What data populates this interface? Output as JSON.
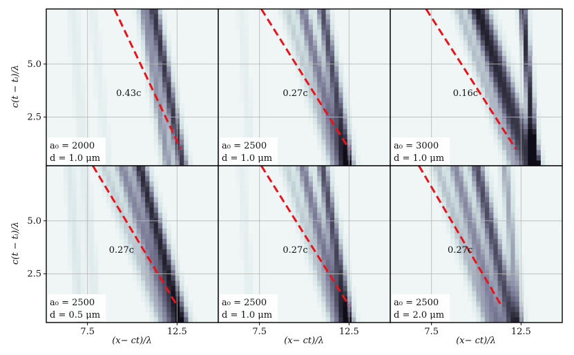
{
  "figure": {
    "xlabel": "(x− ct)/λ",
    "ylabel": "c(t − tᵢ)/λ"
  },
  "chart_data": {
    "type": "heatmap",
    "layout": "2 rows x 3 columns",
    "xlabel": "(x− ct)/λ",
    "ylabel": "c(t − tᵢ)/λ",
    "xlim": [
      5.2,
      14.8
    ],
    "ylim": [
      0.2,
      7.6
    ],
    "xticks": [
      7.5,
      12.5
    ],
    "xtick_labels": [
      "7.5",
      "12.5"
    ],
    "yticks": [
      2.5,
      5.0
    ],
    "ytick_labels": [
      "2.5",
      "5.0"
    ],
    "grid": true,
    "colormap": "bone_r",
    "line_color": "#e8141b",
    "panels": [
      {
        "a0_label": "a₀ = 2000",
        "d_label": "d = 1.0 μm",
        "speed_label": "0.43c",
        "line": {
          "x": [
            9.0,
            12.7
          ],
          "y": [
            7.6,
            1.0
          ]
        },
        "label_pos": {
          "x": 9.1,
          "y": 3.5
        },
        "features": [
          {
            "x0": 11.2,
            "x1": 12.8,
            "w": 0.35,
            "s": 0.85
          },
          {
            "x0": 10.6,
            "x1": 12.0,
            "w": 0.35,
            "s": 0.55
          },
          {
            "x0": 6.7,
            "x1": 7.3,
            "w": 0.35,
            "s": 0.12
          },
          {
            "x0": 7.8,
            "x1": 8.6,
            "w": 0.3,
            "s": 0.1
          }
        ]
      },
      {
        "a0_label": "a₀ = 2500",
        "d_label": "d = 1.0 μm",
        "speed_label": "0.27c",
        "line": {
          "x": [
            7.6,
            12.5
          ],
          "y": [
            7.6,
            1.0
          ]
        },
        "label_pos": {
          "x": 8.8,
          "y": 3.5
        },
        "features": [
          {
            "x0": 11.0,
            "x1": 12.5,
            "w": 0.35,
            "s": 0.8
          },
          {
            "x0": 9.9,
            "x1": 12.1,
            "w": 0.4,
            "s": 0.65
          },
          {
            "x0": 9.0,
            "x1": 11.6,
            "w": 0.35,
            "s": 0.35
          },
          {
            "x0": 6.5,
            "x1": 7.0,
            "w": 0.3,
            "s": 0.1
          }
        ]
      },
      {
        "a0_label": "a₀ = 3000",
        "d_label": "d = 1.0 μm",
        "speed_label": "0.16c",
        "line": {
          "x": [
            7.2,
            12.2
          ],
          "y": [
            7.6,
            1.0
          ]
        },
        "label_pos": {
          "x": 8.7,
          "y": 3.5
        },
        "features": [
          {
            "x0": 10.3,
            "x1": 13.2,
            "w": 0.5,
            "s": 0.75
          },
          {
            "x0": 9.8,
            "x1": 12.6,
            "w": 0.4,
            "s": 0.55
          },
          {
            "x0": 9.0,
            "x1": 12.0,
            "w": 0.35,
            "s": 0.4
          },
          {
            "x0": 12.6,
            "x1": 13.3,
            "w": 0.25,
            "s": 0.9
          }
        ]
      },
      {
        "a0_label": "a₀ = 2500",
        "d_label": "d = 0.5 μm",
        "speed_label": "0.27c",
        "line": {
          "x": [
            7.8,
            12.5
          ],
          "y": [
            7.6,
            1.0
          ]
        },
        "label_pos": {
          "x": 8.7,
          "y": 3.5
        },
        "features": [
          {
            "x0": 10.4,
            "x1": 12.8,
            "w": 0.45,
            "s": 0.9
          },
          {
            "x0": 9.4,
            "x1": 12.2,
            "w": 0.45,
            "s": 0.6
          },
          {
            "x0": 8.4,
            "x1": 11.6,
            "w": 0.4,
            "s": 0.35
          },
          {
            "x0": 6.5,
            "x1": 7.1,
            "w": 0.3,
            "s": 0.2
          },
          {
            "x0": 7.3,
            "x1": 8.0,
            "w": 0.3,
            "s": 0.15
          }
        ]
      },
      {
        "a0_label": "a₀ = 2500",
        "d_label": "d = 1.0 μm",
        "speed_label": "0.27c",
        "line": {
          "x": [
            7.6,
            12.5
          ],
          "y": [
            7.6,
            1.0
          ]
        },
        "label_pos": {
          "x": 8.8,
          "y": 3.5
        },
        "features": [
          {
            "x0": 11.0,
            "x1": 12.5,
            "w": 0.35,
            "s": 0.8
          },
          {
            "x0": 9.9,
            "x1": 12.1,
            "w": 0.4,
            "s": 0.65
          },
          {
            "x0": 9.0,
            "x1": 11.6,
            "w": 0.35,
            "s": 0.35
          },
          {
            "x0": 6.5,
            "x1": 7.0,
            "w": 0.3,
            "s": 0.1
          }
        ]
      },
      {
        "a0_label": "a₀ = 2500",
        "d_label": "d = 2.0 μm",
        "speed_label": "0.27c",
        "line": {
          "x": [
            6.8,
            11.4
          ],
          "y": [
            7.6,
            1.0
          ]
        },
        "label_pos": {
          "x": 8.4,
          "y": 3.5
        },
        "features": [
          {
            "x0": 10.0,
            "x1": 12.0,
            "w": 0.45,
            "s": 0.8
          },
          {
            "x0": 8.8,
            "x1": 11.2,
            "w": 0.45,
            "s": 0.6
          },
          {
            "x0": 7.8,
            "x1": 10.6,
            "w": 0.4,
            "s": 0.4
          },
          {
            "x0": 11.6,
            "x1": 12.4,
            "w": 0.3,
            "s": 0.5
          }
        ]
      }
    ]
  }
}
